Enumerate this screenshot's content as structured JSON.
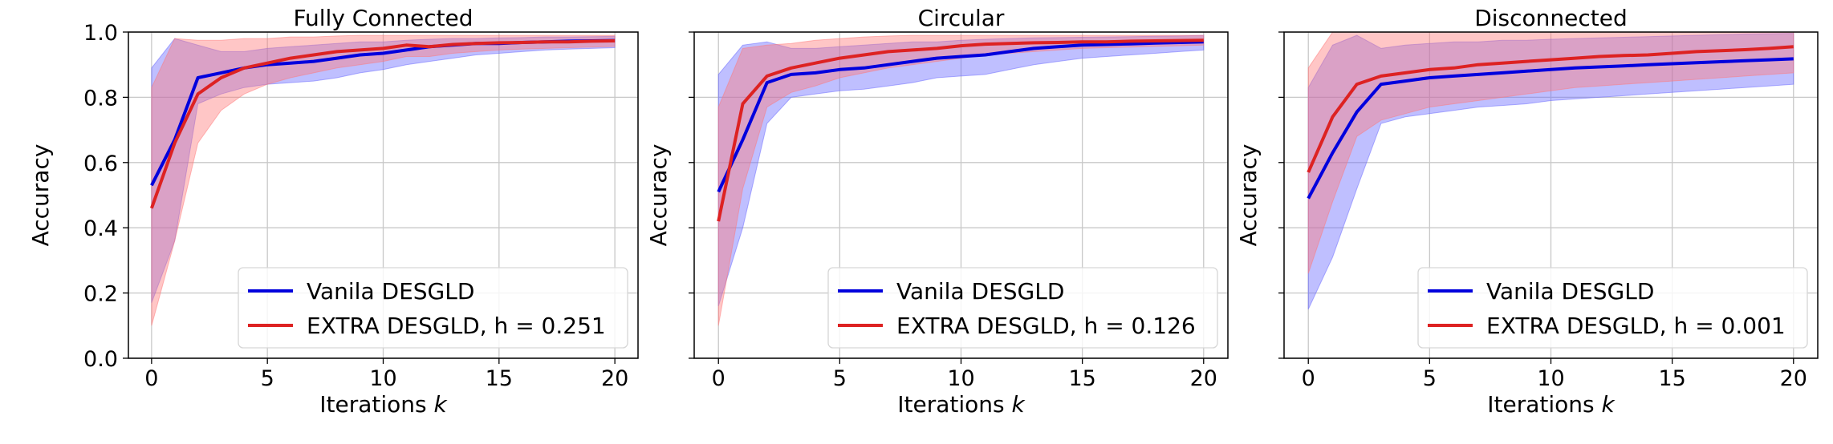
{
  "colors": {
    "vanilla": "#0000dd",
    "vanilla_band": "#6666ff",
    "extra": "#dd2222",
    "extra_band": "#ff7777",
    "grid": "#c8c8c8"
  },
  "chart_data": [
    {
      "type": "line",
      "title": "Fully Connected",
      "xlabel": "Iterations",
      "xlabel_var": "k",
      "ylabel": "Accuracy",
      "xlim": [
        -1,
        21
      ],
      "ylim": [
        0,
        1
      ],
      "xticks": [
        0,
        5,
        10,
        15,
        20
      ],
      "yticks": [
        0.0,
        0.2,
        0.4,
        0.6,
        0.8,
        1.0
      ],
      "ytick_labels": [
        "0.0",
        "0.2",
        "0.4",
        "0.6",
        "0.8",
        "1.0"
      ],
      "grid": true,
      "legend_position": "lower right",
      "series": [
        {
          "name": "Vanila DESGLD",
          "x": [
            0,
            1,
            2,
            3,
            4,
            5,
            6,
            7,
            8,
            9,
            10,
            11,
            12,
            13,
            14,
            15,
            16,
            17,
            18,
            19,
            20
          ],
          "values": [
            0.53,
            0.67,
            0.86,
            0.875,
            0.89,
            0.9,
            0.905,
            0.91,
            0.92,
            0.93,
            0.935,
            0.945,
            0.955,
            0.96,
            0.965,
            0.965,
            0.968,
            0.97,
            0.972,
            0.973,
            0.974
          ],
          "upper": [
            0.89,
            0.98,
            0.96,
            0.94,
            0.94,
            0.95,
            0.955,
            0.96,
            0.965,
            0.97,
            0.97,
            0.975,
            0.978,
            0.98,
            0.98,
            0.982,
            0.983,
            0.985,
            0.985,
            0.986,
            0.987
          ],
          "lower": [
            0.17,
            0.36,
            0.78,
            0.81,
            0.83,
            0.84,
            0.845,
            0.85,
            0.86,
            0.875,
            0.885,
            0.9,
            0.91,
            0.92,
            0.93,
            0.935,
            0.94,
            0.945,
            0.948,
            0.95,
            0.952
          ]
        },
        {
          "name": "EXTRA DESGLD, h = 0.251",
          "x": [
            0,
            1,
            2,
            3,
            4,
            5,
            6,
            7,
            8,
            9,
            10,
            11,
            12,
            13,
            14,
            15,
            16,
            17,
            18,
            19,
            20
          ],
          "values": [
            0.46,
            0.66,
            0.81,
            0.86,
            0.89,
            0.905,
            0.92,
            0.93,
            0.94,
            0.945,
            0.95,
            0.96,
            0.955,
            0.962,
            0.965,
            0.967,
            0.968,
            0.97,
            0.97,
            0.972,
            0.973
          ],
          "upper": [
            0.83,
            0.98,
            0.975,
            0.975,
            0.98,
            0.98,
            0.985,
            0.985,
            0.988,
            0.99,
            0.99,
            0.99,
            0.99,
            0.99,
            0.99,
            0.99,
            0.99,
            0.99,
            0.99,
            0.99,
            0.99
          ],
          "lower": [
            0.1,
            0.36,
            0.66,
            0.76,
            0.81,
            0.84,
            0.86,
            0.875,
            0.89,
            0.9,
            0.91,
            0.925,
            0.925,
            0.935,
            0.94,
            0.945,
            0.948,
            0.95,
            0.952,
            0.954,
            0.956
          ]
        }
      ]
    },
    {
      "type": "line",
      "title": "Circular",
      "xlabel": "Iterations",
      "xlabel_var": "k",
      "ylabel": "Accuracy",
      "xlim": [
        -1,
        21
      ],
      "ylim": [
        0,
        1
      ],
      "xticks": [
        0,
        5,
        10,
        15,
        20
      ],
      "yticks": [
        0.0,
        0.2,
        0.4,
        0.6,
        0.8,
        1.0
      ],
      "ytick_labels": [],
      "grid": true,
      "legend_position": "lower right",
      "series": [
        {
          "name": "Vanila DESGLD",
          "x": [
            0,
            1,
            2,
            3,
            4,
            5,
            6,
            7,
            8,
            9,
            10,
            11,
            12,
            13,
            14,
            15,
            16,
            17,
            18,
            19,
            20
          ],
          "values": [
            0.51,
            0.67,
            0.845,
            0.87,
            0.875,
            0.885,
            0.89,
            0.9,
            0.91,
            0.92,
            0.925,
            0.93,
            0.94,
            0.95,
            0.955,
            0.96,
            0.962,
            0.964,
            0.966,
            0.968,
            0.97
          ],
          "upper": [
            0.87,
            0.96,
            0.97,
            0.95,
            0.95,
            0.955,
            0.96,
            0.965,
            0.97,
            0.97,
            0.975,
            0.978,
            0.98,
            0.982,
            0.983,
            0.984,
            0.985,
            0.986,
            0.987,
            0.988,
            0.99
          ],
          "lower": [
            0.16,
            0.4,
            0.72,
            0.8,
            0.81,
            0.82,
            0.825,
            0.835,
            0.845,
            0.86,
            0.865,
            0.87,
            0.885,
            0.9,
            0.91,
            0.92,
            0.925,
            0.93,
            0.935,
            0.94,
            0.945
          ]
        },
        {
          "name": "EXTRA DESGLD, h = 0.126",
          "x": [
            0,
            1,
            2,
            3,
            4,
            5,
            6,
            7,
            8,
            9,
            10,
            11,
            12,
            13,
            14,
            15,
            16,
            17,
            18,
            19,
            20
          ],
          "values": [
            0.42,
            0.78,
            0.865,
            0.89,
            0.905,
            0.92,
            0.93,
            0.94,
            0.945,
            0.95,
            0.958,
            0.963,
            0.965,
            0.967,
            0.968,
            0.97,
            0.97,
            0.972,
            0.973,
            0.974,
            0.975
          ],
          "upper": [
            0.77,
            0.95,
            0.96,
            0.965,
            0.975,
            0.98,
            0.985,
            0.988,
            0.99,
            0.99,
            0.99,
            0.99,
            0.99,
            0.99,
            0.99,
            0.99,
            0.99,
            0.99,
            0.99,
            0.99,
            0.99
          ],
          "lower": [
            0.1,
            0.52,
            0.77,
            0.815,
            0.835,
            0.86,
            0.875,
            0.89,
            0.9,
            0.91,
            0.92,
            0.93,
            0.935,
            0.94,
            0.945,
            0.95,
            0.952,
            0.954,
            0.956,
            0.958,
            0.96
          ]
        }
      ]
    },
    {
      "type": "line",
      "title": "Disconnected",
      "xlabel": "Iterations",
      "xlabel_var": "k",
      "ylabel": "Accuracy",
      "xlim": [
        -1,
        21
      ],
      "ylim": [
        0,
        1
      ],
      "xticks": [
        0,
        5,
        10,
        15,
        20
      ],
      "yticks": [
        0.0,
        0.2,
        0.4,
        0.6,
        0.8,
        1.0
      ],
      "ytick_labels": [],
      "grid": true,
      "legend_position": "lower right",
      "series": [
        {
          "name": "Vanila DESGLD",
          "x": [
            0,
            1,
            2,
            3,
            4,
            5,
            6,
            7,
            8,
            9,
            10,
            11,
            12,
            13,
            14,
            15,
            16,
            17,
            18,
            19,
            20
          ],
          "values": [
            0.49,
            0.63,
            0.755,
            0.84,
            0.85,
            0.86,
            0.865,
            0.87,
            0.875,
            0.88,
            0.885,
            0.89,
            0.893,
            0.896,
            0.9,
            0.903,
            0.906,
            0.909,
            0.912,
            0.915,
            0.918
          ],
          "upper": [
            0.83,
            0.96,
            0.99,
            0.95,
            0.96,
            0.965,
            0.97,
            0.97,
            0.975,
            0.975,
            0.978,
            0.98,
            0.982,
            0.984,
            0.986,
            0.988,
            0.99,
            0.992,
            0.994,
            0.995,
            0.996
          ],
          "lower": [
            0.15,
            0.31,
            0.52,
            0.72,
            0.74,
            0.75,
            0.76,
            0.77,
            0.775,
            0.78,
            0.79,
            0.795,
            0.8,
            0.805,
            0.81,
            0.815,
            0.82,
            0.825,
            0.83,
            0.835,
            0.84
          ]
        },
        {
          "name": "EXTRA DESGLD, h = 0.001",
          "x": [
            0,
            1,
            2,
            3,
            4,
            5,
            6,
            7,
            8,
            9,
            10,
            11,
            12,
            13,
            14,
            15,
            16,
            17,
            18,
            19,
            20
          ],
          "values": [
            0.57,
            0.74,
            0.84,
            0.865,
            0.875,
            0.885,
            0.89,
            0.9,
            0.905,
            0.91,
            0.915,
            0.92,
            0.925,
            0.928,
            0.93,
            0.935,
            0.94,
            0.943,
            0.946,
            0.95,
            0.955
          ],
          "upper": [
            0.89,
            1.0,
            1.0,
            1.0,
            1.0,
            1.0,
            1.0,
            1.0,
            1.0,
            1.0,
            1.0,
            1.0,
            1.0,
            1.0,
            1.0,
            1.0,
            1.0,
            1.0,
            1.0,
            1.0,
            1.0
          ],
          "lower": [
            0.26,
            0.48,
            0.68,
            0.73,
            0.75,
            0.77,
            0.78,
            0.79,
            0.8,
            0.81,
            0.82,
            0.83,
            0.835,
            0.84,
            0.845,
            0.85,
            0.855,
            0.86,
            0.865,
            0.87,
            0.875
          ]
        }
      ]
    }
  ]
}
